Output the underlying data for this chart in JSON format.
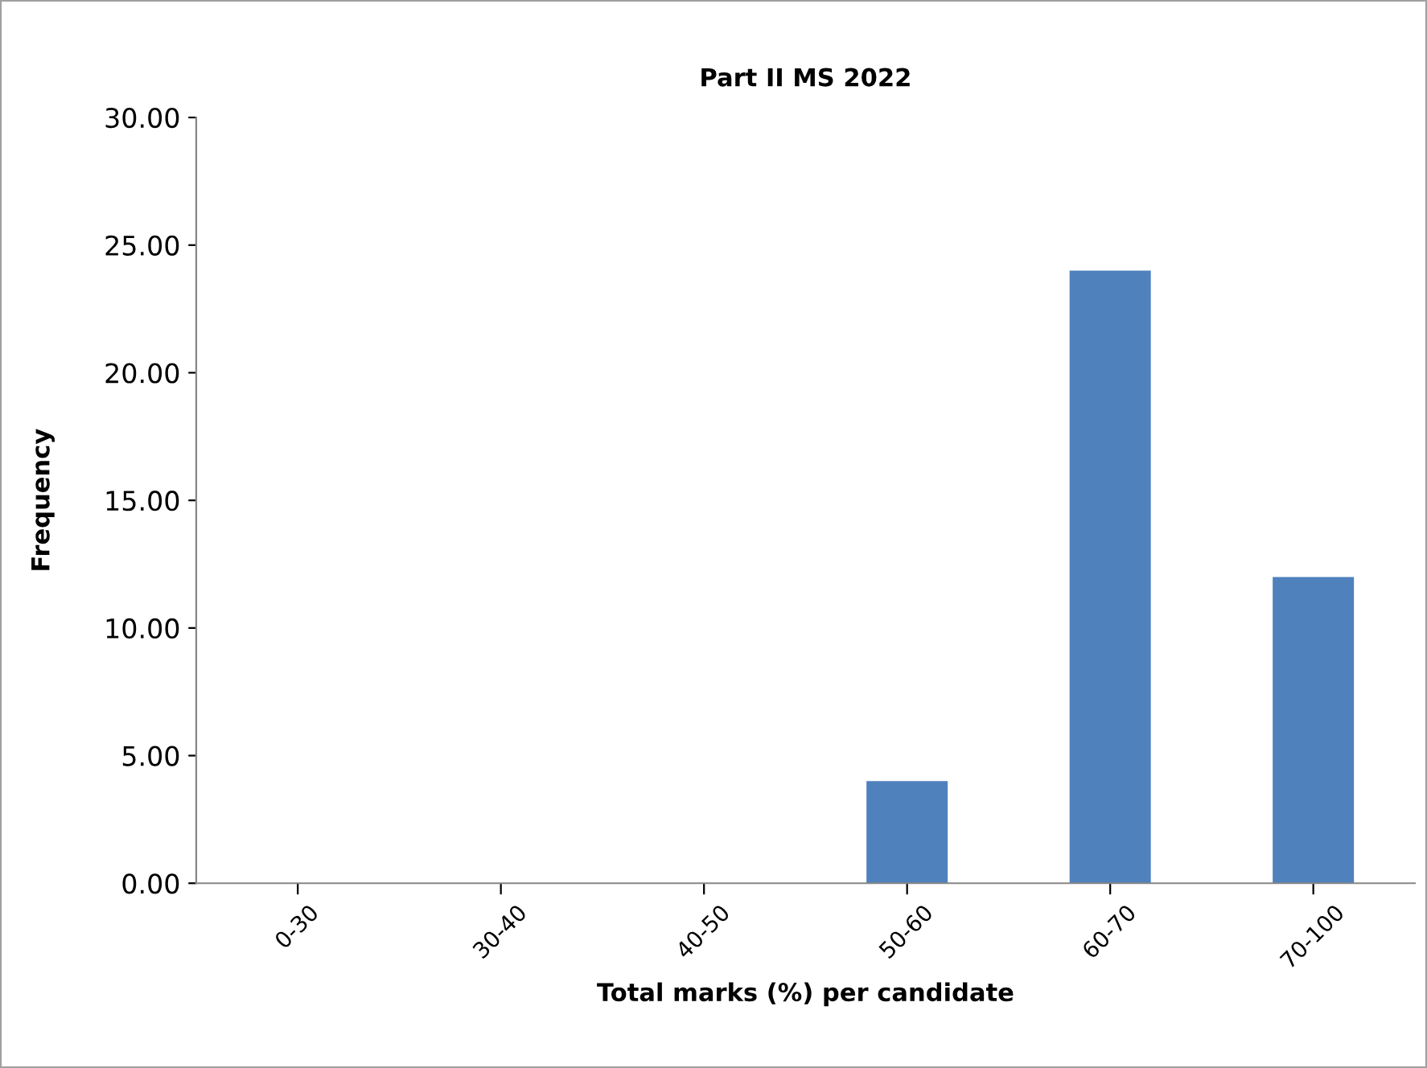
{
  "chart_data": {
    "type": "bar",
    "title": "Part II MS 2022",
    "xlabel": "Total marks (%) per candidate",
    "ylabel": "Frequency",
    "categories": [
      "0-30",
      "30-40",
      "40-50",
      "50-60",
      "60-70",
      "70-100"
    ],
    "values": [
      0,
      0,
      0,
      4,
      24,
      12
    ],
    "color": "#4f81bd",
    "ylim": [
      0,
      30
    ],
    "yticks": [
      {
        "value": 0,
        "label": "0.00"
      },
      {
        "value": 5,
        "label": "5.00"
      },
      {
        "value": 10,
        "label": "10.00"
      },
      {
        "value": 15,
        "label": "15.00"
      },
      {
        "value": 20,
        "label": "20.00"
      },
      {
        "value": 25,
        "label": "25.00"
      },
      {
        "value": 30,
        "label": "30.00"
      }
    ],
    "grid": false,
    "legend": false
  }
}
